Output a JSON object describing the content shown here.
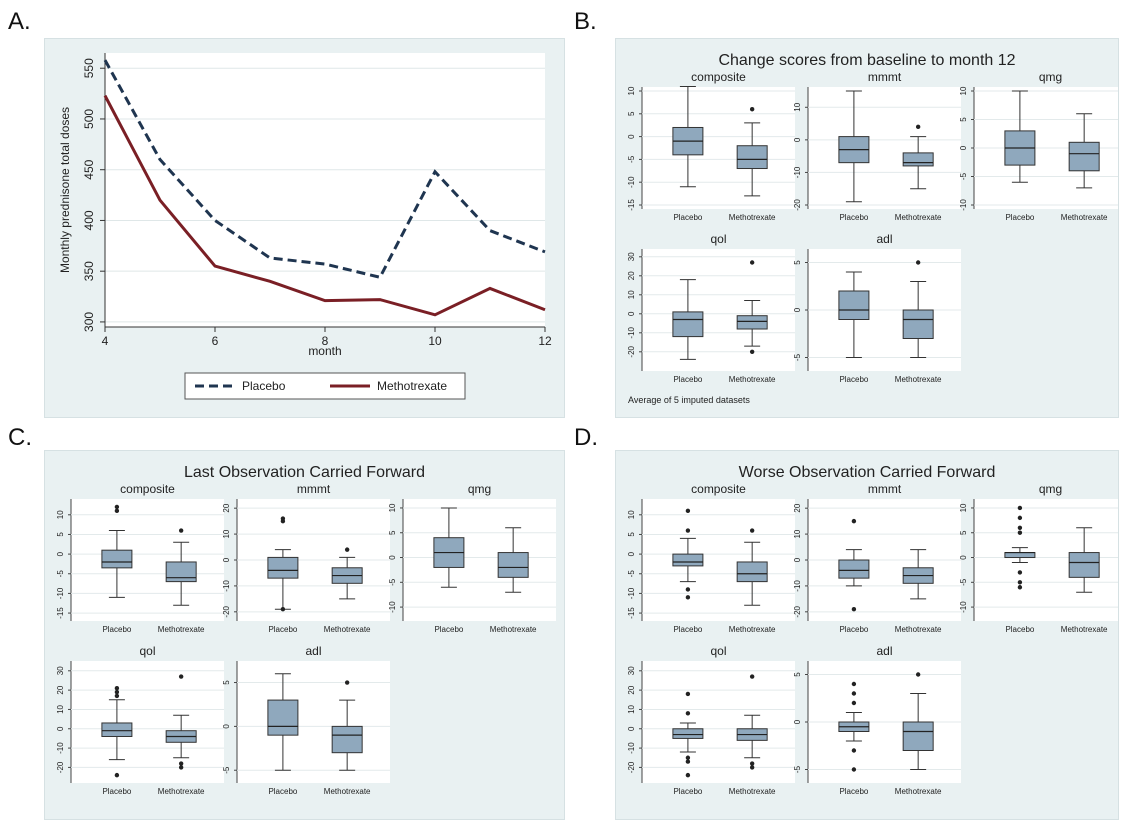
{
  "panel_labels": {
    "a": "A.",
    "b": "B.",
    "c": "C.",
    "d": "D."
  },
  "chart_data": [
    {
      "type": "line",
      "panel": "A.",
      "xlabel": "month",
      "ylabel": "Monthly prednisone total doses",
      "x": [
        4,
        5,
        6,
        7,
        8,
        9,
        10,
        11,
        12
      ],
      "xticks": [
        4,
        6,
        8,
        10,
        12
      ],
      "yticks": [
        300,
        350,
        400,
        450,
        500,
        550
      ],
      "xlim": [
        4,
        12
      ],
      "ylim": [
        295,
        565
      ],
      "grid": true,
      "series": [
        {
          "name": "Placebo",
          "color": "#1f3550",
          "style": "dashed",
          "values": [
            558,
            460,
            400,
            363,
            357,
            344,
            448,
            390,
            369
          ]
        },
        {
          "name": "Methotrexate",
          "color": "#7a1f25",
          "style": "solid",
          "values": [
            523,
            420,
            355,
            340,
            321,
            322,
            307,
            333,
            312
          ]
        }
      ],
      "legend": "bottom"
    },
    {
      "type": "box",
      "panel": "B.",
      "title": "Change scores from baseline to month 12",
      "note": "Average of 5 imputed datasets",
      "categories": [
        "Placebo",
        "Methotrexate"
      ],
      "subplots": [
        {
          "name": "composite",
          "ylim": [
            -15,
            10
          ],
          "yticks": [
            -15,
            -10,
            -5,
            0,
            5,
            10
          ],
          "boxes": [
            {
              "q1": -4,
              "med": -1,
              "q3": 2,
              "lo": -11,
              "hi": 11,
              "outliers": []
            },
            {
              "q1": -7,
              "med": -5,
              "q3": -2,
              "lo": -13,
              "hi": 3,
              "outliers": [
                6
              ]
            }
          ]
        },
        {
          "name": "mmmt",
          "ylim": [
            -20,
            15
          ],
          "yticks": [
            -20,
            -10,
            0,
            10
          ],
          "boxes": [
            {
              "q1": -7,
              "med": -3,
              "q3": 1,
              "lo": -19,
              "hi": 15,
              "outliers": []
            },
            {
              "q1": -8,
              "med": -7,
              "q3": -4,
              "lo": -15,
              "hi": 1,
              "outliers": [
                4
              ]
            }
          ]
        },
        {
          "name": "qmg",
          "ylim": [
            -10,
            10
          ],
          "yticks": [
            -10,
            -5,
            0,
            5,
            10
          ],
          "boxes": [
            {
              "q1": -3,
              "med": 0,
              "q3": 3,
              "lo": -6,
              "hi": 10,
              "outliers": []
            },
            {
              "q1": -4,
              "med": -1,
              "q3": 1,
              "lo": -7,
              "hi": 6,
              "outliers": []
            }
          ]
        },
        {
          "name": "qol",
          "ylim": [
            -28,
            32
          ],
          "yticks": [
            -20,
            -10,
            0,
            10,
            20,
            30
          ],
          "boxes": [
            {
              "q1": -12,
              "med": -3,
              "q3": 1,
              "lo": -24,
              "hi": 18,
              "outliers": []
            },
            {
              "q1": -8,
              "med": -4,
              "q3": -1,
              "lo": -17,
              "hi": 7,
              "outliers": [
                27,
                -20
              ]
            }
          ]
        },
        {
          "name": "adl",
          "ylim": [
            -6,
            6
          ],
          "yticks": [
            -5,
            0,
            5
          ],
          "boxes": [
            {
              "q1": -1,
              "med": 0,
              "q3": 2,
              "lo": -5,
              "hi": 4,
              "outliers": []
            },
            {
              "q1": -3,
              "med": -1,
              "q3": 0,
              "lo": -5,
              "hi": 3,
              "outliers": [
                5
              ]
            }
          ]
        }
      ]
    },
    {
      "type": "box",
      "panel": "C.",
      "title": "Last Observation Carried Forward",
      "categories": [
        "Placebo",
        "Methotrexate"
      ],
      "subplots": [
        {
          "name": "composite",
          "ylim": [
            -16,
            13
          ],
          "yticks": [
            -15,
            -10,
            -5,
            0,
            5,
            10
          ],
          "boxes": [
            {
              "q1": -3.5,
              "med": -2,
              "q3": 1,
              "lo": -11,
              "hi": 6,
              "outliers": [
                11,
                12
              ]
            },
            {
              "q1": -7,
              "med": -6,
              "q3": -2,
              "lo": -13,
              "hi": 3,
              "outliers": [
                6
              ]
            }
          ]
        },
        {
          "name": "mmmt",
          "ylim": [
            -22,
            22
          ],
          "yticks": [
            -20,
            -10,
            0,
            10,
            20
          ],
          "boxes": [
            {
              "q1": -7,
              "med": -4,
              "q3": 1,
              "lo": -19,
              "hi": 4,
              "outliers": [
                15,
                16,
                -19
              ]
            },
            {
              "q1": -9,
              "med": -6,
              "q3": -3,
              "lo": -15,
              "hi": 1,
              "outliers": [
                4
              ]
            }
          ]
        },
        {
          "name": "qmg",
          "ylim": [
            -12,
            11
          ],
          "yticks": [
            -10,
            -5,
            0,
            5,
            10
          ],
          "boxes": [
            {
              "q1": -2,
              "med": 1,
              "q3": 4,
              "lo": -6,
              "hi": 10,
              "outliers": []
            },
            {
              "q1": -4,
              "med": -2,
              "q3": 1,
              "lo": -7,
              "hi": 6,
              "outliers": []
            }
          ]
        },
        {
          "name": "qol",
          "ylim": [
            -26,
            33
          ],
          "yticks": [
            -20,
            -10,
            0,
            10,
            20,
            30
          ],
          "boxes": [
            {
              "q1": -4,
              "med": -1,
              "q3": 3,
              "lo": -16,
              "hi": 15,
              "outliers": [
                17,
                19,
                21,
                -24
              ]
            },
            {
              "q1": -7,
              "med": -4,
              "q3": -1,
              "lo": -15,
              "hi": 7,
              "outliers": [
                27,
                -18,
                -20
              ]
            }
          ]
        },
        {
          "name": "adl",
          "ylim": [
            -6,
            7
          ],
          "yticks": [
            -5,
            0,
            5
          ],
          "boxes": [
            {
              "q1": -1,
              "med": 0,
              "q3": 3,
              "lo": -5,
              "hi": 6,
              "outliers": []
            },
            {
              "q1": -3,
              "med": -1,
              "q3": 0,
              "lo": -5,
              "hi": 3,
              "outliers": [
                5
              ]
            }
          ]
        }
      ]
    },
    {
      "type": "box",
      "panel": "D.",
      "title": "Worse Observation Carried Forward",
      "categories": [
        "Placebo",
        "Methotrexate"
      ],
      "subplots": [
        {
          "name": "composite",
          "ylim": [
            -16,
            13
          ],
          "yticks": [
            -15,
            -10,
            -5,
            0,
            5,
            10
          ],
          "boxes": [
            {
              "q1": -3,
              "med": -2,
              "q3": 0,
              "lo": -7,
              "hi": 4,
              "outliers": [
                11,
                6,
                -9,
                -11
              ]
            },
            {
              "q1": -7,
              "med": -5,
              "q3": -2,
              "lo": -13,
              "hi": 3,
              "outliers": [
                6
              ]
            }
          ]
        },
        {
          "name": "mmmt",
          "ylim": [
            -22,
            22
          ],
          "yticks": [
            -20,
            -10,
            0,
            10,
            20
          ],
          "boxes": [
            {
              "q1": -7,
              "med": -4,
              "q3": 0,
              "lo": -10,
              "hi": 4,
              "outliers": [
                15,
                -19
              ]
            },
            {
              "q1": -9,
              "med": -6,
              "q3": -3,
              "lo": -15,
              "hi": 4,
              "outliers": []
            }
          ]
        },
        {
          "name": "qmg",
          "ylim": [
            -12,
            11
          ],
          "yticks": [
            -10,
            -5,
            0,
            5,
            10
          ],
          "boxes": [
            {
              "q1": 0,
              "med": 1,
              "q3": 1,
              "lo": -1,
              "hi": 2,
              "outliers": [
                10,
                8,
                6,
                5,
                -3,
                -5,
                -6
              ]
            },
            {
              "q1": -4,
              "med": -1,
              "q3": 1,
              "lo": -7,
              "hi": 6,
              "outliers": []
            }
          ]
        },
        {
          "name": "qol",
          "ylim": [
            -26,
            33
          ],
          "yticks": [
            -20,
            -10,
            0,
            10,
            20,
            30
          ],
          "boxes": [
            {
              "q1": -5,
              "med": -3,
              "q3": 0,
              "lo": -12,
              "hi": 3,
              "outliers": [
                18,
                8,
                -15,
                -17,
                -24
              ]
            },
            {
              "q1": -6,
              "med": -3,
              "q3": 0,
              "lo": -15,
              "hi": 7,
              "outliers": [
                27,
                -18,
                -20
              ]
            }
          ]
        },
        {
          "name": "adl",
          "ylim": [
            -6,
            6
          ],
          "yticks": [
            -5,
            0,
            5
          ],
          "boxes": [
            {
              "q1": -1,
              "med": -0.5,
              "q3": 0,
              "lo": -2,
              "hi": 1,
              "outliers": [
                4,
                3,
                2,
                -3,
                -5
              ]
            },
            {
              "q1": -3,
              "med": -1,
              "q3": 0,
              "lo": -5,
              "hi": 3,
              "outliers": [
                5
              ]
            }
          ]
        }
      ]
    }
  ]
}
